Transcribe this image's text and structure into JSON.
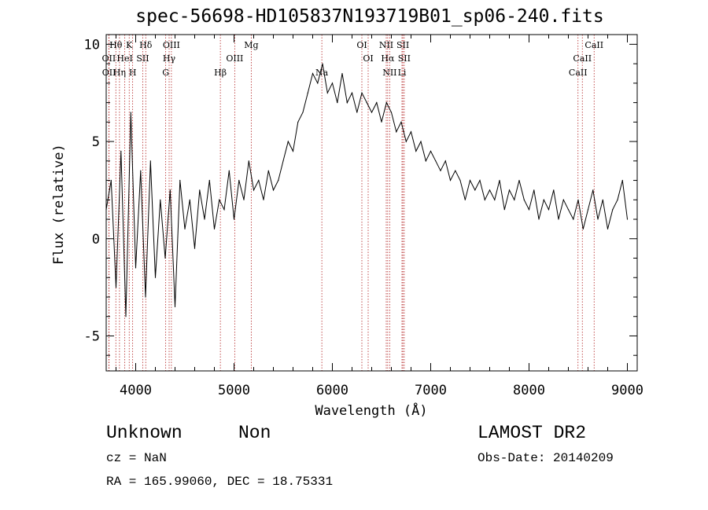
{
  "title": "spec-56698-HD105837N193719B01_sp06-240.fits",
  "info": {
    "object_class": "Unknown",
    "object_subclass": "Non",
    "cz": "cz = NaN",
    "radec": "RA = 165.99060, DEC =  18.75331",
    "survey": "LAMOST DR2",
    "obs_date": "Obs-Date: 20140209"
  },
  "chart_data": {
    "type": "line",
    "title": "spec-56698-HD105837N193719B01_sp06-240.fits",
    "xlabel": "Wavelength (Å)",
    "ylabel": "Flux (relative)",
    "xlim": [
      3700,
      9100
    ],
    "ylim": [
      -6.8,
      10.5
    ],
    "xticks": [
      4000,
      5000,
      6000,
      7000,
      8000,
      9000
    ],
    "yticks": [
      -5,
      0,
      5,
      10
    ],
    "grid": false,
    "line_color": "#000000",
    "marker_color": "#b22222",
    "series": [
      {
        "values_x": [
          3700,
          3750,
          3800,
          3850,
          3900,
          3950,
          4000,
          4050,
          4100,
          4150,
          4200,
          4250,
          4300,
          4350,
          4400,
          4450,
          4500,
          4550,
          4600,
          4650,
          4700,
          4750,
          4800,
          4850,
          4900,
          4950,
          5000,
          5050,
          5100,
          5150,
          5200,
          5250,
          5300,
          5350,
          5400,
          5450,
          5500,
          5550,
          5600,
          5650,
          5700,
          5750,
          5800,
          5850,
          5900,
          5950,
          6000,
          6050,
          6100,
          6150,
          6200,
          6250,
          6300,
          6350,
          6400,
          6450,
          6500,
          6550,
          6600,
          6650,
          6700,
          6750,
          6800,
          6850,
          6900,
          6950,
          7000,
          7050,
          7100,
          7150,
          7200,
          7250,
          7300,
          7350,
          7400,
          7450,
          7500,
          7550,
          7600,
          7650,
          7700,
          7750,
          7800,
          7850,
          7900,
          7950,
          8000,
          8050,
          8100,
          8150,
          8200,
          8250,
          8300,
          8350,
          8400,
          8450,
          8500,
          8550,
          8600,
          8650,
          8700,
          8750,
          8800,
          8850,
          8900,
          8950,
          9000
        ],
        "values_y": [
          1.5,
          3.0,
          -2.5,
          4.5,
          -4.0,
          6.5,
          -1.5,
          3.5,
          -3.0,
          4.0,
          -2.0,
          2.0,
          -1.0,
          2.5,
          -3.5,
          3.0,
          0.5,
          2.0,
          -0.5,
          2.5,
          1.0,
          3.0,
          0.5,
          2.0,
          1.5,
          3.5,
          1.0,
          3.0,
          2.0,
          4.0,
          2.5,
          3.0,
          2.0,
          3.5,
          2.5,
          3.0,
          4.0,
          5.0,
          4.5,
          6.0,
          6.5,
          7.5,
          8.5,
          8.0,
          9.0,
          7.5,
          8.0,
          7.0,
          8.5,
          7.0,
          7.5,
          6.5,
          7.5,
          7.0,
          6.5,
          7.0,
          6.0,
          7.0,
          6.5,
          5.5,
          6.0,
          5.0,
          5.5,
          4.5,
          5.0,
          4.0,
          4.5,
          4.0,
          3.5,
          4.0,
          3.0,
          3.5,
          3.0,
          2.0,
          3.0,
          2.5,
          3.0,
          2.0,
          2.5,
          2.0,
          3.0,
          1.5,
          2.5,
          2.0,
          3.0,
          2.0,
          1.5,
          2.5,
          1.0,
          2.0,
          1.5,
          2.5,
          1.0,
          2.0,
          1.5,
          1.0,
          2.0,
          0.5,
          1.5,
          2.5,
          1.0,
          2.0,
          0.5,
          1.5,
          2.0,
          3.0,
          1.0
        ]
      }
    ],
    "lines": [
      {
        "name": "Hθ",
        "x": 3798,
        "row": 0
      },
      {
        "name": "OII",
        "x": 3727,
        "row": 1
      },
      {
        "name": "OII",
        "x": 3729,
        "row": 2
      },
      {
        "name": "Hη",
        "x": 3835,
        "row": 2
      },
      {
        "name": "HeI",
        "x": 3889,
        "row": 1
      },
      {
        "name": "K",
        "x": 3934,
        "row": 0
      },
      {
        "name": "H",
        "x": 3969,
        "row": 2
      },
      {
        "name": "SII",
        "x": 4072,
        "row": 1
      },
      {
        "name": "Hδ",
        "x": 4102,
        "row": 0
      },
      {
        "name": "OIII",
        "x": 4363,
        "row": 0
      },
      {
        "name": "Hγ",
        "x": 4340,
        "row": 1
      },
      {
        "name": "G",
        "x": 4305,
        "row": 2
      },
      {
        "name": "Hβ",
        "x": 4861,
        "row": 2
      },
      {
        "name": "OIII",
        "x": 5007,
        "row": 1
      },
      {
        "name": "Mg",
        "x": 5175,
        "row": 0
      },
      {
        "name": "Na",
        "x": 5893,
        "row": 2
      },
      {
        "name": "OI",
        "x": 6300,
        "row": 0
      },
      {
        "name": "OI",
        "x": 6364,
        "row": 1
      },
      {
        "name": "NII",
        "x": 6548,
        "row": 0
      },
      {
        "name": "NII",
        "x": 6583,
        "row": 2
      },
      {
        "name": "Hα",
        "x": 6563,
        "row": 1
      },
      {
        "name": "SII",
        "x": 6717,
        "row": 0
      },
      {
        "name": "SII",
        "x": 6731,
        "row": 1
      },
      {
        "name": "Li",
        "x": 6708,
        "row": 2
      },
      {
        "name": "CaII",
        "x": 8662,
        "row": 0
      },
      {
        "name": "CaII",
        "x": 8542,
        "row": 1
      },
      {
        "name": "CaII",
        "x": 8498,
        "row": 2
      }
    ]
  }
}
